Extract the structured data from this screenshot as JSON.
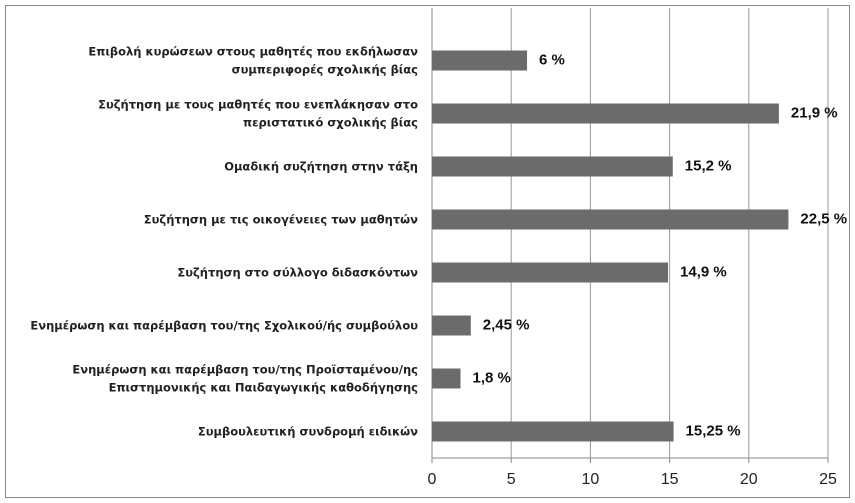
{
  "chart_data": {
    "type": "hbar",
    "categories": [
      "Επιβολή κυρώσεων στους μαθητές που εκδήλωσαν\nσυμπεριφορές σχολικής βίας",
      "Συζήτηση με τους μαθητές που ενεπλάκησαν στο\nπεριστατικό σχολικής βίας",
      "Ομαδική συζήτηση στην τάξη",
      "Συζήτηση με τις οικογένειες των μαθητών",
      "Συζήτηση στο σύλλογο διδασκόντων",
      "Ενημέρωση και παρέμβαση του/της Σχολικού/ής συμβούλου",
      "Ενημέρωση και παρέμβαση του/της Προϊσταμένου/ης\nΕπιστημονικής και Παιδαγωγικής καθοδήγησης",
      "Συμβουλευτική συνδρομή ειδικών"
    ],
    "values": [
      6,
      21.9,
      15.2,
      22.5,
      14.9,
      2.45,
      1.8,
      15.25
    ],
    "value_labels": [
      "6 %",
      "21,9 %",
      "15,2 %",
      "22,5 %",
      "14,9 %",
      "2,45 %",
      "1,8 %",
      "15,25 %"
    ],
    "color": "#6b6b6b",
    "xlim": [
      0,
      25
    ],
    "xticks": [
      0,
      5,
      10,
      15,
      20,
      25
    ],
    "grid": true
  }
}
